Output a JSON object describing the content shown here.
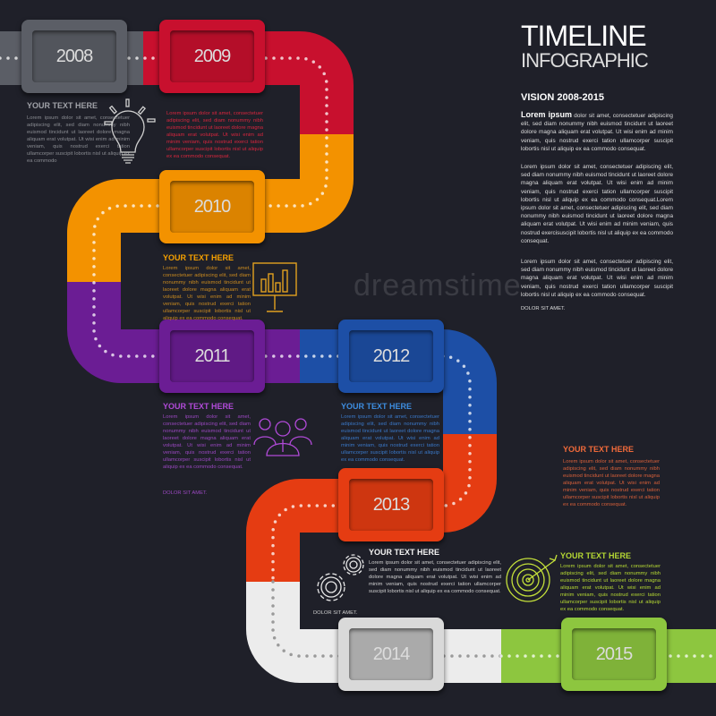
{
  "header": {
    "title": "TIMELINE",
    "subtitle": "INFOGRAPHIC",
    "vision": "VISION 2008-2015"
  },
  "intro": {
    "lead": "Lorem ipsum",
    "p1": " dolor sit amet, consectetuer adipiscing elit, sed diam nonummy nibh euismod tincidunt ut laoreet dolore magna aliquam erat volutpat. Ut wisi enim ad minim veniam, quis nostrud exerci tation ullamcorper suscipit lobortis nisl ut aliquip ex ea commodo consequat.",
    "p2": "Lorem ipsum dolor sit amet, consectetuer adipiscing elit, sed diam nonummy nibh euismod tincidunt ut laoreet dolore magna aliquam erat volutpat. Ut wisi enim ad minim veniam, quis nostrud exerci tation ullamcorper suscipit lobortis nisl ut aliquip ex ea commodo consequat.Lorem ipsum dolor sit amet, consectetuer adipiscing elit, sed diam nonummy nibh euismod tincidunt ut laoreet dolore magna aliquam erat volutpat. Ut wisi enim ad minim veniam, quis nostrud exercisuscipit lobortis nisl ut aliquip ex ea commodo consequat.",
    "p3": "Lorem ipsum dolor sit amet, consectetuer adipiscing elit, sed diam nonummy nibh euismod tincidunt ut laoreet dolore magna aliquam erat volutpat. Ut wisi enim ad minim veniam, quis nostrud exerci tation ullamcorper suscipit lobortis nisl ut aliquip ex ea commodo consequat.",
    "dolor": "DOLOR SIT AMET."
  },
  "colors": {
    "background": "#1f2029",
    "2008": "#5b5e66",
    "2009": "#c8102e",
    "2010": "#f39200",
    "2011": "#6b1d94",
    "2012": "#1d4fa6",
    "2013": "#e53c12",
    "2014": "#ececec",
    "2015": "#8dc63f"
  },
  "years": [
    {
      "year": "2008",
      "heading": "YOUR TEXT HERE",
      "text": "Lorem ipsum dolor sit amet, consectetuer adipiscing elit, sed diam nonummy nibh euismod tincidunt ut laoreet dolore magna aliquam erat volutpat. Ut wisi enim ad minim veniam, quis nostrud exerci tation ullamcorper suscipit lobortis nisl ut aliquip ex ea commodo",
      "icon": "lightbulb-icon"
    },
    {
      "year": "2009",
      "text": "Lorem ipsum dolor sit amet, consectetuer adipiscing elit, sed diam nonummy nibh euismod tincidunt ut laoreet dolore magna aliquam erat volutpat. Ut wisi enim ad minim veniam, quis nostrud exerci tation ullamcorper suscipit lobortis nisl ut aliquip ex ea commodo consequat."
    },
    {
      "year": "2010",
      "heading": "YOUR TEXT HERE",
      "text": "Lorem ipsum dolor sit amet, consectetuer adipiscing elit, sed diam nonummy nibh euismod tincidunt ut laoreet dolore magna aliquam erat volutpat. Ut wisi enim ad minim veniam, quis nostrud exerci tation ullamcorper suscipit lobortis nisl ut aliquip ex ea commodo consequat.",
      "icon": "presentation-chart-icon"
    },
    {
      "year": "2011",
      "heading": "YOUR TEXT HERE",
      "text": "Lorem ipsum dolor sit amet, consectetuer adipiscing elit, sed diam nonummy nibh euismod tincidunt ut laoreet dolore magna aliquam erat volutpat. Ut wisi enim ad minim veniam, quis nostrud exerci tation ullamcorper suscipit lobortis nisl ut aliquip ex ea commodo consequat.",
      "dolor": "DOLOR SIT AMET.",
      "icon": "team-icon"
    },
    {
      "year": "2012",
      "heading": "YOUR TEXT HERE",
      "text": "Lorem ipsum dolor sit amet, consectetuer adipiscing elit, sed diam nonummy nibh euismod tincidunt ut laoreet dolore magna aliquam erat volutpat. Ut wisi enim ad minim veniam, quis nostrud exerci tation ullamcorper suscipit lobortis nisl ut aliquip ex ea commodo consequat."
    },
    {
      "year": "2013",
      "heading": "YOUR TEXT HERE",
      "text": "Lorem ipsum dolor sit amet, consectetuer adipiscing elit, sed diam nonummy nibh euismod tincidunt ut laoreet dolore magna aliquam erat volutpat. Ut wisi enim ad minim veniam, quis nostrud exerci tation ullamcorper suscipit lobortis nisl ut aliquip ex ea commodo consequat."
    },
    {
      "year": "2014",
      "heading": "YOUR TEXT HERE",
      "text": "Lorem ipsum dolor sit amet, consectetuer adipiscing elit, sed diam nonummy nibh euismod tincidunt ut laoreet dolore magna aliquam erat volutpat. Ut wisi enim ad minim veniam, quis nostrud exerci tation ullamcorper suscipit lobortis nisl ut aliquip ex ea commodo consequat.",
      "dolor": "DOLOR SIT AMET.",
      "icon": "gears-icon"
    },
    {
      "year": "2015",
      "heading": "YOUR TEXT HERE",
      "text": "Lorem ipsum dolor sit amet, consectetuer adipiscing elit, sed diam nonummy nibh euismod tincidunt ut laoreet dolore magna aliquam erat volutpat. Ut wisi enim ad minim veniam, quis nostrud exerci tation ullamcorper suscipit lobortis nisl ut aliquip ex ea commodo consequat.",
      "icon": "target-icon"
    }
  ],
  "watermark": "dreamstime"
}
